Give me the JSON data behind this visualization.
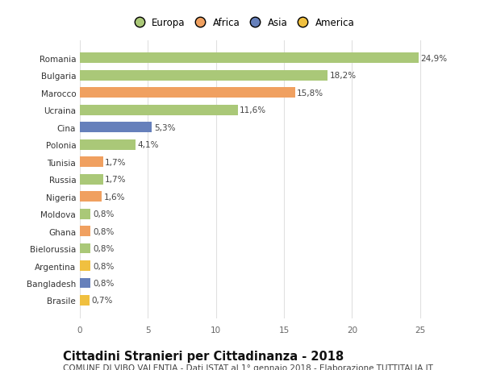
{
  "categories": [
    "Brasile",
    "Bangladesh",
    "Argentina",
    "Bielorussia",
    "Ghana",
    "Moldova",
    "Nigeria",
    "Russia",
    "Tunisia",
    "Polonia",
    "Cina",
    "Ucraina",
    "Marocco",
    "Bulgaria",
    "Romania"
  ],
  "values": [
    0.7,
    0.8,
    0.8,
    0.8,
    0.8,
    0.8,
    1.6,
    1.7,
    1.7,
    4.1,
    5.3,
    11.6,
    15.8,
    18.2,
    24.9
  ],
  "colors": [
    "#f0c040",
    "#6680bb",
    "#f0c040",
    "#aac878",
    "#f0a060",
    "#aac878",
    "#f0a060",
    "#aac878",
    "#f0a060",
    "#aac878",
    "#6680bb",
    "#aac878",
    "#f0a060",
    "#aac878",
    "#aac878"
  ],
  "labels": [
    "0,7%",
    "0,8%",
    "0,8%",
    "0,8%",
    "0,8%",
    "0,8%",
    "1,6%",
    "1,7%",
    "1,7%",
    "4,1%",
    "5,3%",
    "11,6%",
    "15,8%",
    "18,2%",
    "24,9%"
  ],
  "xlim": [
    0,
    26.5
  ],
  "xticks": [
    0,
    5,
    10,
    15,
    20,
    25
  ],
  "title": "Cittadini Stranieri per Cittadinanza - 2018",
  "subtitle": "COMUNE DI VIBO VALENTIA - Dati ISTAT al 1° gennaio 2018 - Elaborazione TUTTITALIA.IT",
  "legend_labels": [
    "Europa",
    "Africa",
    "Asia",
    "America"
  ],
  "legend_colors": [
    "#aac878",
    "#f0a060",
    "#6680bb",
    "#f0c040"
  ],
  "background_color": "#ffffff",
  "plot_bg_color": "#ffffff",
  "grid_color": "#e0e0e0",
  "bar_height": 0.6,
  "label_fontsize": 7.5,
  "title_fontsize": 10.5,
  "subtitle_fontsize": 7.5,
  "category_fontsize": 7.5,
  "tick_fontsize": 7.5
}
